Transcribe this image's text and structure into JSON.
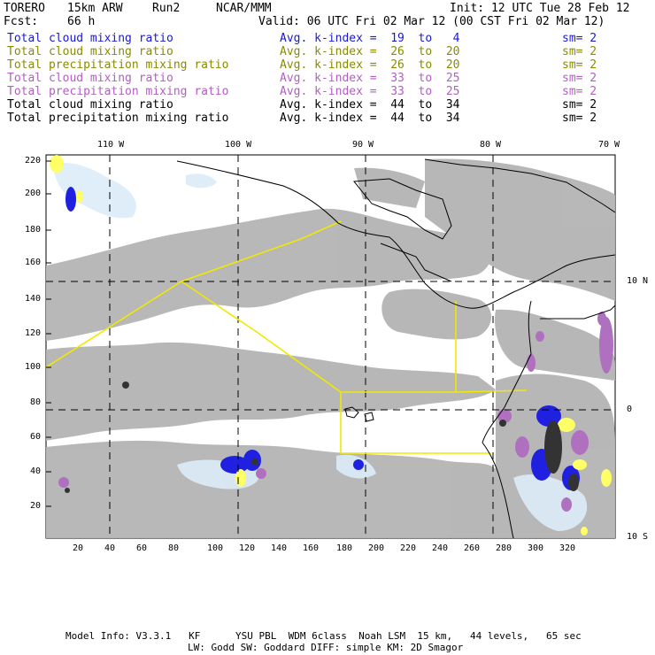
{
  "header": {
    "model": "TORERO",
    "resolution": "15km ARW",
    "run": "Run2",
    "org": "NCAR/MMM",
    "init": "Init: 12 UTC Tue 28 Feb 12",
    "fcst_label": "Fcst:",
    "fcst_value": "66 h",
    "valid": "Valid: 06 UTC Fri 02 Mar 12 (00 CST Fri 02 Mar 12)"
  },
  "legend": [
    {
      "field": "Total cloud mixing ratio",
      "kindex": "Avg. k-index =  19  to   4",
      "sm": "sm= 2",
      "color": "#1a1ad0"
    },
    {
      "field": "Total cloud mixing ratio",
      "kindex": "Avg. k-index =  26  to  20",
      "sm": "sm= 2",
      "color": "#8a8a00"
    },
    {
      "field": "Total precipitation mixing ratio",
      "kindex": "Avg. k-index =  26  to  20",
      "sm": "sm= 2",
      "color": "#8a8a00"
    },
    {
      "field": "Total cloud mixing ratio",
      "kindex": "Avg. k-index =  33  to  25",
      "sm": "sm= 2",
      "color": "#b060c0"
    },
    {
      "field": "Total precipitation mixing ratio",
      "kindex": "Avg. k-index =  33  to  25",
      "sm": "sm= 2",
      "color": "#b060c0"
    },
    {
      "field": "Total cloud mixing ratio",
      "kindex": "Avg. k-index =  44  to  34",
      "sm": "sm= 2",
      "color": "#000000"
    },
    {
      "field": "Total precipitation mixing ratio",
      "kindex": "Avg. k-index =  44  to  34",
      "sm": "sm= 2",
      "color": "#000000"
    }
  ],
  "axes": {
    "top_lon": [
      "110 W",
      "100 W",
      "90 W",
      "80 W",
      "70 W"
    ],
    "right_lat": [
      "10 N",
      "0",
      "10 S"
    ],
    "left_y": [
      "220",
      "200",
      "180",
      "160",
      "140",
      "120",
      "100",
      "80",
      "60",
      "40",
      "20"
    ],
    "bottom_x": [
      "20",
      "40",
      "60",
      "80",
      "100",
      "120",
      "140",
      "160",
      "180",
      "200",
      "220",
      "240",
      "260",
      "280",
      "300",
      "320"
    ]
  },
  "footer": {
    "line1": "Model Info: V3.3.1   KF      YSU PBL  WDM 6class  Noah LSM  15 km,   44 levels,   65 sec",
    "line2": "LW: Godd SW: Goddard DIFF: simple KM: 2D Smagor"
  },
  "colors": {
    "gray_field": "#b4b4b4",
    "light_blue": "#dcecf8",
    "blue": "#2020e0",
    "yellow": "#ffff66",
    "purple": "#b070c0",
    "boundary": "#ffff00"
  }
}
